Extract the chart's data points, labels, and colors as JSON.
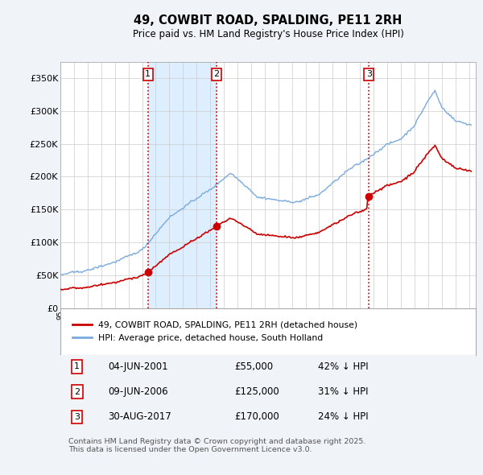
{
  "title": "49, COWBIT ROAD, SPALDING, PE11 2RH",
  "subtitle": "Price paid vs. HM Land Registry's House Price Index (HPI)",
  "background_color": "#f0f4f8",
  "plot_bg_color": "#ffffff",
  "shading_color": "#ddeeff",
  "ylim": [
    0,
    375000
  ],
  "yticks": [
    0,
    50000,
    100000,
    150000,
    200000,
    250000,
    300000,
    350000
  ],
  "ytick_labels": [
    "£0",
    "£50K",
    "£100K",
    "£150K",
    "£200K",
    "£250K",
    "£300K",
    "£350K"
  ],
  "xlim_start": 1995.0,
  "xlim_end": 2025.5,
  "sale_dates": [
    2001.42,
    2006.44,
    2017.66
  ],
  "sale_prices": [
    55000,
    125000,
    170000
  ],
  "sale_labels": [
    "1",
    "2",
    "3"
  ],
  "vline_color": "#cc0000",
  "vline_style": ":",
  "sale_marker_color": "#cc0000",
  "hpi_line_color": "#7aaadd",
  "price_line_color": "#cc0000",
  "legend_label_price": "49, COWBIT ROAD, SPALDING, PE11 2RH (detached house)",
  "legend_label_hpi": "HPI: Average price, detached house, South Holland",
  "table_entries": [
    {
      "num": "1",
      "date": "04-JUN-2001",
      "price": "£55,000",
      "hpi": "42% ↓ HPI"
    },
    {
      "num": "2",
      "date": "09-JUN-2006",
      "price": "£125,000",
      "hpi": "31% ↓ HPI"
    },
    {
      "num": "3",
      "date": "30-AUG-2017",
      "price": "£170,000",
      "hpi": "24% ↓ HPI"
    }
  ],
  "footer": "Contains HM Land Registry data © Crown copyright and database right 2025.\nThis data is licensed under the Open Government Licence v3.0."
}
